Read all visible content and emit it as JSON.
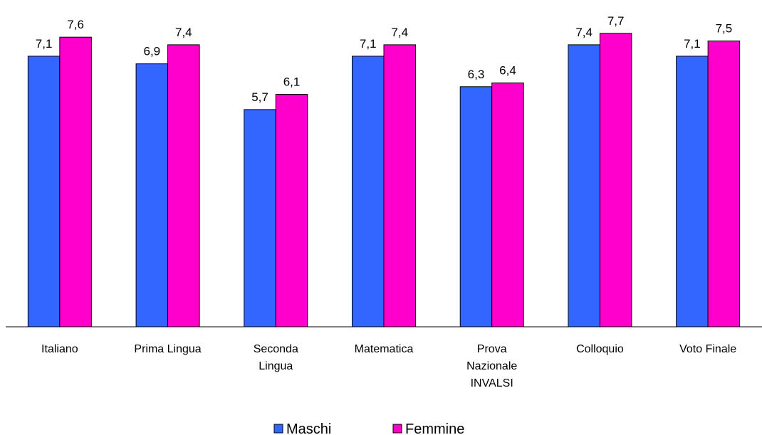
{
  "chart_data": {
    "type": "bar",
    "categories": [
      "Italiano",
      "Prima Lingua",
      "Seconda Lingua",
      "Matematica",
      "Prova Nazionale INVALSI",
      "Colloquio",
      "Voto Finale"
    ],
    "series": [
      {
        "name": "Maschi",
        "color": "#3366FF",
        "values": [
          7.1,
          6.9,
          5.7,
          7.1,
          6.3,
          7.4,
          7.1
        ],
        "value_labels": [
          "7,1",
          "6,9",
          "5,7",
          "7,1",
          "6,3",
          "7,4",
          "7,1"
        ]
      },
      {
        "name": "Femmine",
        "color": "#FF00CC",
        "values": [
          7.6,
          7.4,
          6.1,
          7.4,
          6.4,
          7.7,
          7.5
        ],
        "value_labels": [
          "7,6",
          "7,4",
          "6,1",
          "7,4",
          "6,4",
          "7,7",
          "7,5"
        ]
      }
    ],
    "ylim": [
      0,
      8.5
    ],
    "legend": "bottom"
  }
}
